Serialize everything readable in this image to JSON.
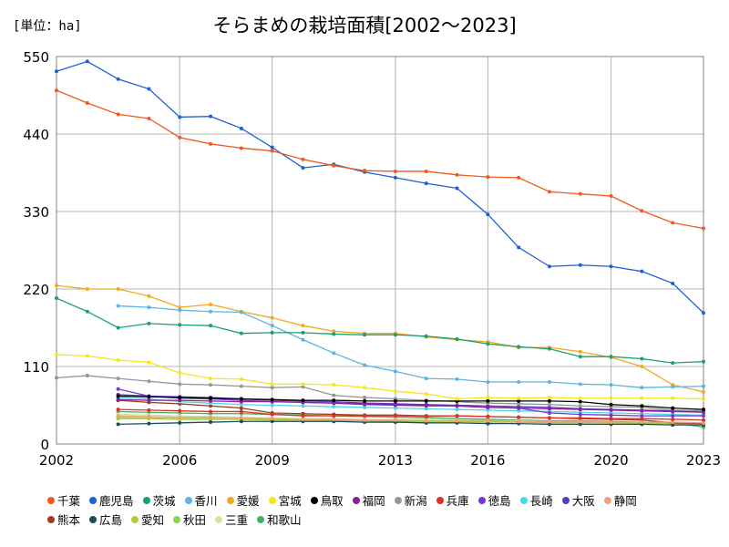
{
  "unit_label": "[単位：ha]",
  "title": "そらまめの栽培面積[2002～2023]",
  "chart_data": {
    "type": "line",
    "title": "そらまめの栽培面積[2002～2023]",
    "ylabel": "[単位：ha]",
    "xlabel": "",
    "xlim": [
      2002,
      2023
    ],
    "ylim": [
      0,
      550
    ],
    "x_ticks": [
      2002,
      2006,
      2009,
      2013,
      2016,
      2020,
      2023
    ],
    "y_ticks": [
      0,
      110,
      220,
      330,
      440,
      550
    ],
    "grid": true,
    "legend_position": "bottom",
    "series": [
      {
        "name": "千葉",
        "color": "#f05a1e",
        "x": [
          2002,
          2003,
          2004,
          2005,
          2006,
          2007,
          2008,
          2009,
          2010,
          2011,
          2012,
          2013,
          2014,
          2015,
          2016,
          2017,
          2018,
          2019,
          2020,
          2021,
          2022,
          2023
        ],
        "values": [
          502,
          484,
          468,
          462,
          435,
          426,
          420,
          416,
          404,
          395,
          388,
          387,
          387,
          382,
          379,
          378,
          358,
          355,
          352,
          331,
          314,
          306
        ]
      },
      {
        "name": "鹿児島",
        "color": "#1f5fd6",
        "x": [
          2002,
          2003,
          2004,
          2005,
          2006,
          2007,
          2008,
          2009,
          2010,
          2011,
          2012,
          2013,
          2014,
          2015,
          2016,
          2017,
          2018,
          2019,
          2020,
          2021,
          2022,
          2023
        ],
        "values": [
          529,
          543,
          518,
          504,
          464,
          465,
          448,
          421,
          392,
          397,
          386,
          378,
          370,
          363,
          326,
          279,
          252,
          254,
          252,
          245,
          228,
          186
        ]
      },
      {
        "name": "茨城",
        "color": "#19a06e",
        "x": [
          2002,
          2003,
          2004,
          2005,
          2006,
          2007,
          2008,
          2009,
          2010,
          2011,
          2012,
          2013,
          2014,
          2015,
          2016,
          2017,
          2018,
          2019,
          2020,
          2021,
          2022,
          2023
        ],
        "values": [
          207,
          188,
          165,
          171,
          169,
          168,
          157,
          158,
          158,
          156,
          155,
          155,
          153,
          149,
          142,
          138,
          135,
          124,
          124,
          121,
          115,
          117
        ]
      },
      {
        "name": "香川",
        "color": "#5ab4e6",
        "x": [
          2004,
          2005,
          2006,
          2007,
          2008,
          2009,
          2010,
          2011,
          2012,
          2013,
          2014,
          2015,
          2016,
          2017,
          2018,
          2019,
          2020,
          2021,
          2022,
          2023
        ],
        "values": [
          196,
          194,
          190,
          188,
          187,
          168,
          148,
          129,
          112,
          103,
          93,
          92,
          88,
          88,
          88,
          85,
          84,
          80,
          81,
          82
        ]
      },
      {
        "name": "愛媛",
        "color": "#f0aa1e",
        "x": [
          2002,
          2003,
          2004,
          2005,
          2006,
          2007,
          2008,
          2009,
          2010,
          2011,
          2012,
          2013,
          2014,
          2015,
          2016,
          2017,
          2018,
          2019,
          2020,
          2021,
          2022,
          2023
        ],
        "values": [
          225,
          220,
          220,
          210,
          194,
          198,
          188,
          179,
          168,
          160,
          157,
          157,
          152,
          148,
          145,
          137,
          137,
          131,
          123,
          110,
          84,
          74
        ]
      },
      {
        "name": "宮城",
        "color": "#f5e61e",
        "x": [
          2002,
          2003,
          2004,
          2005,
          2006,
          2007,
          2008,
          2009,
          2010,
          2011,
          2012,
          2013,
          2014,
          2015,
          2016,
          2017,
          2018,
          2019,
          2020,
          2021,
          2022,
          2023
        ],
        "values": [
          127,
          125,
          119,
          116,
          101,
          93,
          92,
          85,
          85,
          84,
          80,
          75,
          71,
          64,
          66,
          65,
          66,
          65,
          65,
          65,
          65,
          64
        ]
      },
      {
        "name": "鳥取",
        "color": "#000000",
        "x": [
          2004,
          2005,
          2006,
          2007,
          2008,
          2009,
          2010,
          2011,
          2012,
          2013,
          2014,
          2015,
          2016,
          2017,
          2018,
          2019,
          2020,
          2021,
          2022,
          2023
        ],
        "values": [
          68,
          67,
          66,
          65,
          64,
          63,
          62,
          62,
          61,
          61,
          61,
          61,
          61,
          61,
          61,
          60,
          56,
          54,
          51,
          49
        ]
      },
      {
        "name": "福岡",
        "color": "#8c1ea0",
        "x": [
          2004,
          2005,
          2006,
          2007,
          2008,
          2009,
          2010,
          2011,
          2012,
          2013,
          2014,
          2015,
          2016,
          2017,
          2018,
          2019,
          2020,
          2021,
          2022,
          2023
        ],
        "values": [
          63,
          62,
          62,
          61,
          60,
          60,
          59,
          58,
          57,
          56,
          55,
          54,
          52,
          51,
          50,
          49,
          48,
          47,
          46,
          45
        ]
      },
      {
        "name": "新潟",
        "color": "#969696",
        "x": [
          2002,
          2003,
          2004,
          2005,
          2006,
          2007,
          2008,
          2009,
          2010,
          2011,
          2012,
          2013,
          2014,
          2015,
          2016,
          2017,
          2018,
          2019,
          2020,
          2021,
          2022,
          2023
        ],
        "values": [
          94,
          97,
          93,
          89,
          85,
          84,
          82,
          80,
          81,
          69,
          66,
          64,
          62,
          60,
          58,
          57,
          56,
          54,
          53,
          52,
          48,
          47
        ]
      },
      {
        "name": "兵庫",
        "color": "#dc3228",
        "x": [
          2004,
          2005,
          2006,
          2007,
          2008,
          2009,
          2010,
          2011,
          2012,
          2013,
          2014,
          2015,
          2016,
          2017,
          2018,
          2019,
          2020,
          2021,
          2022,
          2023
        ],
        "values": [
          49,
          48,
          47,
          46,
          46,
          42,
          40,
          40,
          40,
          40,
          39,
          40,
          39,
          38,
          37,
          37,
          36,
          36,
          35,
          34
        ]
      },
      {
        "name": "徳島",
        "color": "#7837d2",
        "x": [
          2004,
          2005,
          2006,
          2007,
          2008,
          2009,
          2010,
          2011,
          2012,
          2013,
          2014,
          2015,
          2016,
          2017,
          2018,
          2019,
          2020,
          2021,
          2022,
          2023
        ],
        "values": [
          78,
          68,
          65,
          64,
          62,
          60,
          59,
          58,
          56,
          55,
          54,
          54,
          52,
          51,
          44,
          42,
          41,
          40,
          40,
          40
        ]
      },
      {
        "name": "長崎",
        "color": "#4bd7e6",
        "x": [
          2004,
          2005,
          2006,
          2007,
          2008,
          2009,
          2010,
          2011,
          2012,
          2013,
          2014,
          2015,
          2016,
          2017,
          2018,
          2019,
          2020,
          2021,
          2022,
          2023
        ],
        "values": [
          66,
          64,
          60,
          58,
          56,
          55,
          54,
          53,
          52,
          51,
          50,
          49,
          48,
          47,
          46,
          45,
          44,
          43,
          42,
          41
        ]
      },
      {
        "name": "大阪",
        "color": "#5a3cb4",
        "x": [
          2004,
          2005,
          2006,
          2007,
          2008,
          2009,
          2010,
          2011,
          2012,
          2013,
          2014,
          2015,
          2016,
          2017,
          2018,
          2019,
          2020,
          2021,
          2022,
          2023
        ],
        "values": [
          70,
          68,
          67,
          66,
          64,
          62,
          61,
          60,
          58,
          57,
          56,
          55,
          54,
          53,
          52,
          50,
          49,
          48,
          47,
          46
        ]
      },
      {
        "name": "静岡",
        "color": "#f0a078",
        "x": [
          2004,
          2005,
          2006,
          2007,
          2008,
          2009,
          2010,
          2011,
          2012,
          2013,
          2014,
          2015,
          2016,
          2017,
          2018,
          2019,
          2020,
          2021,
          2022,
          2023
        ],
        "values": [
          40,
          39,
          38,
          38,
          37,
          36,
          35,
          35,
          34,
          34,
          33,
          33,
          33,
          32,
          32,
          32,
          31,
          31,
          31,
          30
        ]
      },
      {
        "name": "熊本",
        "color": "#a03c1e",
        "x": [
          2004,
          2005,
          2006,
          2007,
          2008,
          2009,
          2010,
          2011,
          2012,
          2013,
          2014,
          2015,
          2016,
          2017,
          2018,
          2019,
          2020,
          2021,
          2022,
          2023
        ],
        "values": [
          62,
          59,
          57,
          54,
          51,
          44,
          43,
          42,
          41,
          41,
          40,
          40,
          39,
          38,
          37,
          36,
          35,
          34,
          30,
          29
        ]
      },
      {
        "name": "広島",
        "color": "#1e4b5a",
        "x": [
          2004,
          2005,
          2006,
          2007,
          2008,
          2009,
          2010,
          2011,
          2012,
          2013,
          2014,
          2015,
          2016,
          2017,
          2018,
          2019,
          2020,
          2021,
          2022,
          2023
        ],
        "values": [
          28,
          29,
          30,
          31,
          32,
          32,
          32,
          32,
          31,
          31,
          30,
          30,
          29,
          29,
          28,
          28,
          28,
          28,
          27,
          27
        ]
      },
      {
        "name": "愛知",
        "color": "#b4c83c",
        "x": [
          2004,
          2005,
          2006,
          2007,
          2008,
          2009,
          2010,
          2011,
          2012,
          2013,
          2014,
          2015,
          2016,
          2017,
          2018,
          2019,
          2020,
          2021,
          2022,
          2023
        ],
        "values": [
          38,
          37,
          36,
          36,
          35,
          35,
          34,
          34,
          33,
          33,
          33,
          32,
          32,
          32,
          31,
          31,
          30,
          30,
          30,
          29
        ]
      },
      {
        "name": "秋田",
        "color": "#8cd250",
        "x": [
          2004,
          2005,
          2006,
          2007,
          2008,
          2009,
          2010,
          2011,
          2012,
          2013,
          2014,
          2015,
          2016,
          2017,
          2018,
          2019,
          2020,
          2021,
          2022,
          2023
        ],
        "values": [
          36,
          36,
          35,
          35,
          35,
          34,
          34,
          33,
          33,
          32,
          32,
          32,
          31,
          31,
          30,
          30,
          30,
          29,
          29,
          28
        ]
      },
      {
        "name": "三重",
        "color": "#d2e6a0",
        "x": [
          2004,
          2005,
          2006,
          2007,
          2008,
          2009,
          2010,
          2011,
          2012,
          2013,
          2014,
          2015,
          2016,
          2017,
          2018,
          2019,
          2020,
          2021,
          2022,
          2023
        ],
        "values": [
          42,
          41,
          40,
          39,
          38,
          37,
          36,
          36,
          35,
          35,
          34,
          34,
          33,
          33,
          32,
          32,
          31,
          31,
          30,
          30
        ]
      },
      {
        "name": "和歌山",
        "color": "#3cb464",
        "x": [
          2004,
          2005,
          2006,
          2007,
          2008,
          2009,
          2010,
          2011,
          2012,
          2013,
          2014,
          2015,
          2016,
          2017,
          2018,
          2019,
          2020,
          2021,
          2022,
          2023
        ],
        "values": [
          46,
          45,
          44,
          43,
          43,
          42,
          41,
          40,
          39,
          38,
          37,
          36,
          35,
          34,
          33,
          33,
          32,
          31,
          30,
          24
        ]
      }
    ]
  }
}
